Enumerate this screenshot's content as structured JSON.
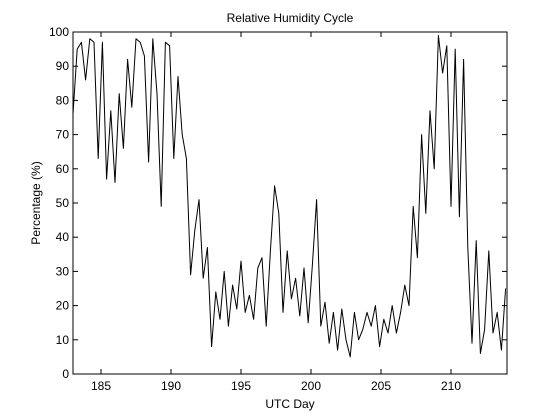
{
  "chart_data": {
    "type": "line",
    "title": "Relative Humidity Cycle",
    "xlabel": "UTC Day",
    "ylabel": "Percentage (%)",
    "xlim": [
      183,
      214
    ],
    "ylim": [
      0,
      100
    ],
    "xticks": [
      185,
      190,
      195,
      200,
      205,
      210
    ],
    "yticks": [
      0,
      10,
      20,
      30,
      40,
      50,
      60,
      70,
      80,
      90,
      100
    ],
    "grid": false,
    "line_color": "#000000",
    "series": [
      {
        "x": [
          183.0,
          183.3,
          183.6,
          183.9,
          184.2,
          184.5,
          184.8,
          185.1,
          185.4,
          185.7,
          186.0,
          186.3,
          186.6,
          186.9,
          187.2,
          187.5,
          187.8,
          188.1,
          188.4,
          188.7,
          189.0,
          189.3,
          189.6,
          189.9,
          190.2,
          190.5,
          190.8,
          191.1,
          191.4,
          191.7,
          192.0,
          192.3,
          192.6,
          192.9,
          193.2,
          193.5,
          193.8,
          194.1,
          194.4,
          194.7,
          195.0,
          195.3,
          195.6,
          195.9,
          196.2,
          196.5,
          196.8,
          197.1,
          197.4,
          197.7,
          198.0,
          198.3,
          198.6,
          198.9,
          199.2,
          199.5,
          199.8,
          200.1,
          200.4,
          200.7,
          201.0,
          201.3,
          201.6,
          201.9,
          202.2,
          202.5,
          202.8,
          203.1,
          203.4,
          203.7,
          204.0,
          204.3,
          204.6,
          204.9,
          205.2,
          205.5,
          205.8,
          206.1,
          206.4,
          206.7,
          207.0,
          207.3,
          207.6,
          207.9,
          208.2,
          208.5,
          208.8,
          209.1,
          209.4,
          209.7,
          210.0,
          210.3,
          210.6,
          210.9,
          211.2,
          211.5,
          211.8,
          212.1,
          212.4,
          212.7,
          213.0,
          213.3,
          213.6,
          213.9
        ],
        "values": [
          76,
          95,
          97,
          86,
          98,
          97,
          63,
          97,
          57,
          77,
          56,
          82,
          66,
          92,
          78,
          98,
          97,
          93,
          62,
          98,
          82,
          49,
          97,
          96,
          63,
          87,
          70,
          63,
          29,
          42,
          51,
          28,
          37,
          8,
          24,
          16,
          30,
          14,
          26,
          19,
          33,
          18,
          23,
          16,
          31,
          34,
          14,
          36,
          55,
          47,
          18,
          36,
          22,
          28,
          17,
          31,
          15,
          32,
          51,
          14,
          21,
          9,
          18,
          7,
          19,
          10,
          5,
          18,
          10,
          13,
          18,
          14,
          20,
          8,
          16,
          12,
          20,
          12,
          18,
          26,
          20,
          49,
          34,
          70,
          47,
          77,
          60,
          99,
          88,
          96,
          49,
          95,
          46,
          92,
          37,
          9,
          39,
          6,
          13,
          36,
          12,
          18,
          7,
          25
        ]
      }
    ]
  }
}
